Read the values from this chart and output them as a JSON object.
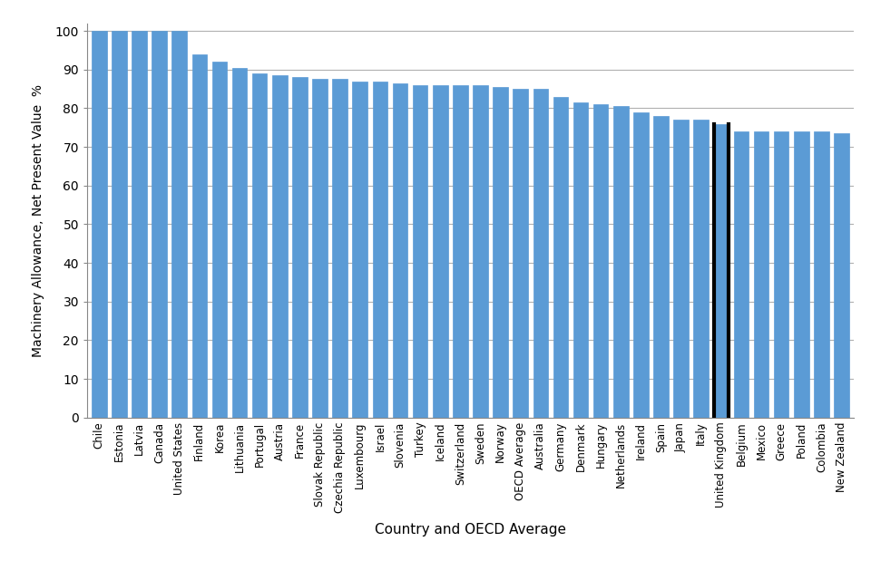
{
  "xlabel": "Country and OECD Average",
  "ylabel": "Machinery Allowance, Net Present Value  %",
  "categories": [
    "Chile",
    "Estonia",
    "Latvia",
    "Canada",
    "United States",
    "Finland",
    "Korea",
    "Lithuania",
    "Portugal",
    "Austria",
    "France",
    "Slovak Republic",
    "Czechia Republic",
    "Luxembourg",
    "Israel",
    "Slovenia",
    "Turkey",
    "Iceland",
    "Switzerland",
    "Sweden",
    "Norway",
    "OECD Average",
    "Australia",
    "Germany",
    "Denmark",
    "Hungary",
    "Netherlands",
    "Ireland",
    "Spain",
    "Japan",
    "Italy",
    "United Kingdom",
    "Belgium",
    "Mexico",
    "Greece",
    "Poland",
    "Colombia",
    "New Zealand"
  ],
  "values": [
    100,
    100,
    100,
    100,
    100,
    94,
    92,
    90.5,
    89,
    88.5,
    88,
    87.5,
    87.5,
    87,
    87,
    86.5,
    86,
    86,
    86,
    86,
    85.5,
    85,
    85,
    83,
    81.5,
    81,
    80.5,
    79,
    78,
    77,
    77,
    76,
    74,
    74,
    74,
    74,
    74,
    73.5
  ],
  "uk_index": 31,
  "bar_color": "#5B9BD5",
  "uk_border_color": "#000000",
  "ylim": [
    0,
    102
  ],
  "yticks": [
    0,
    10,
    20,
    30,
    40,
    50,
    60,
    70,
    80,
    90,
    100
  ],
  "grid_color": "#b0b0b0",
  "background_color": "#ffffff"
}
